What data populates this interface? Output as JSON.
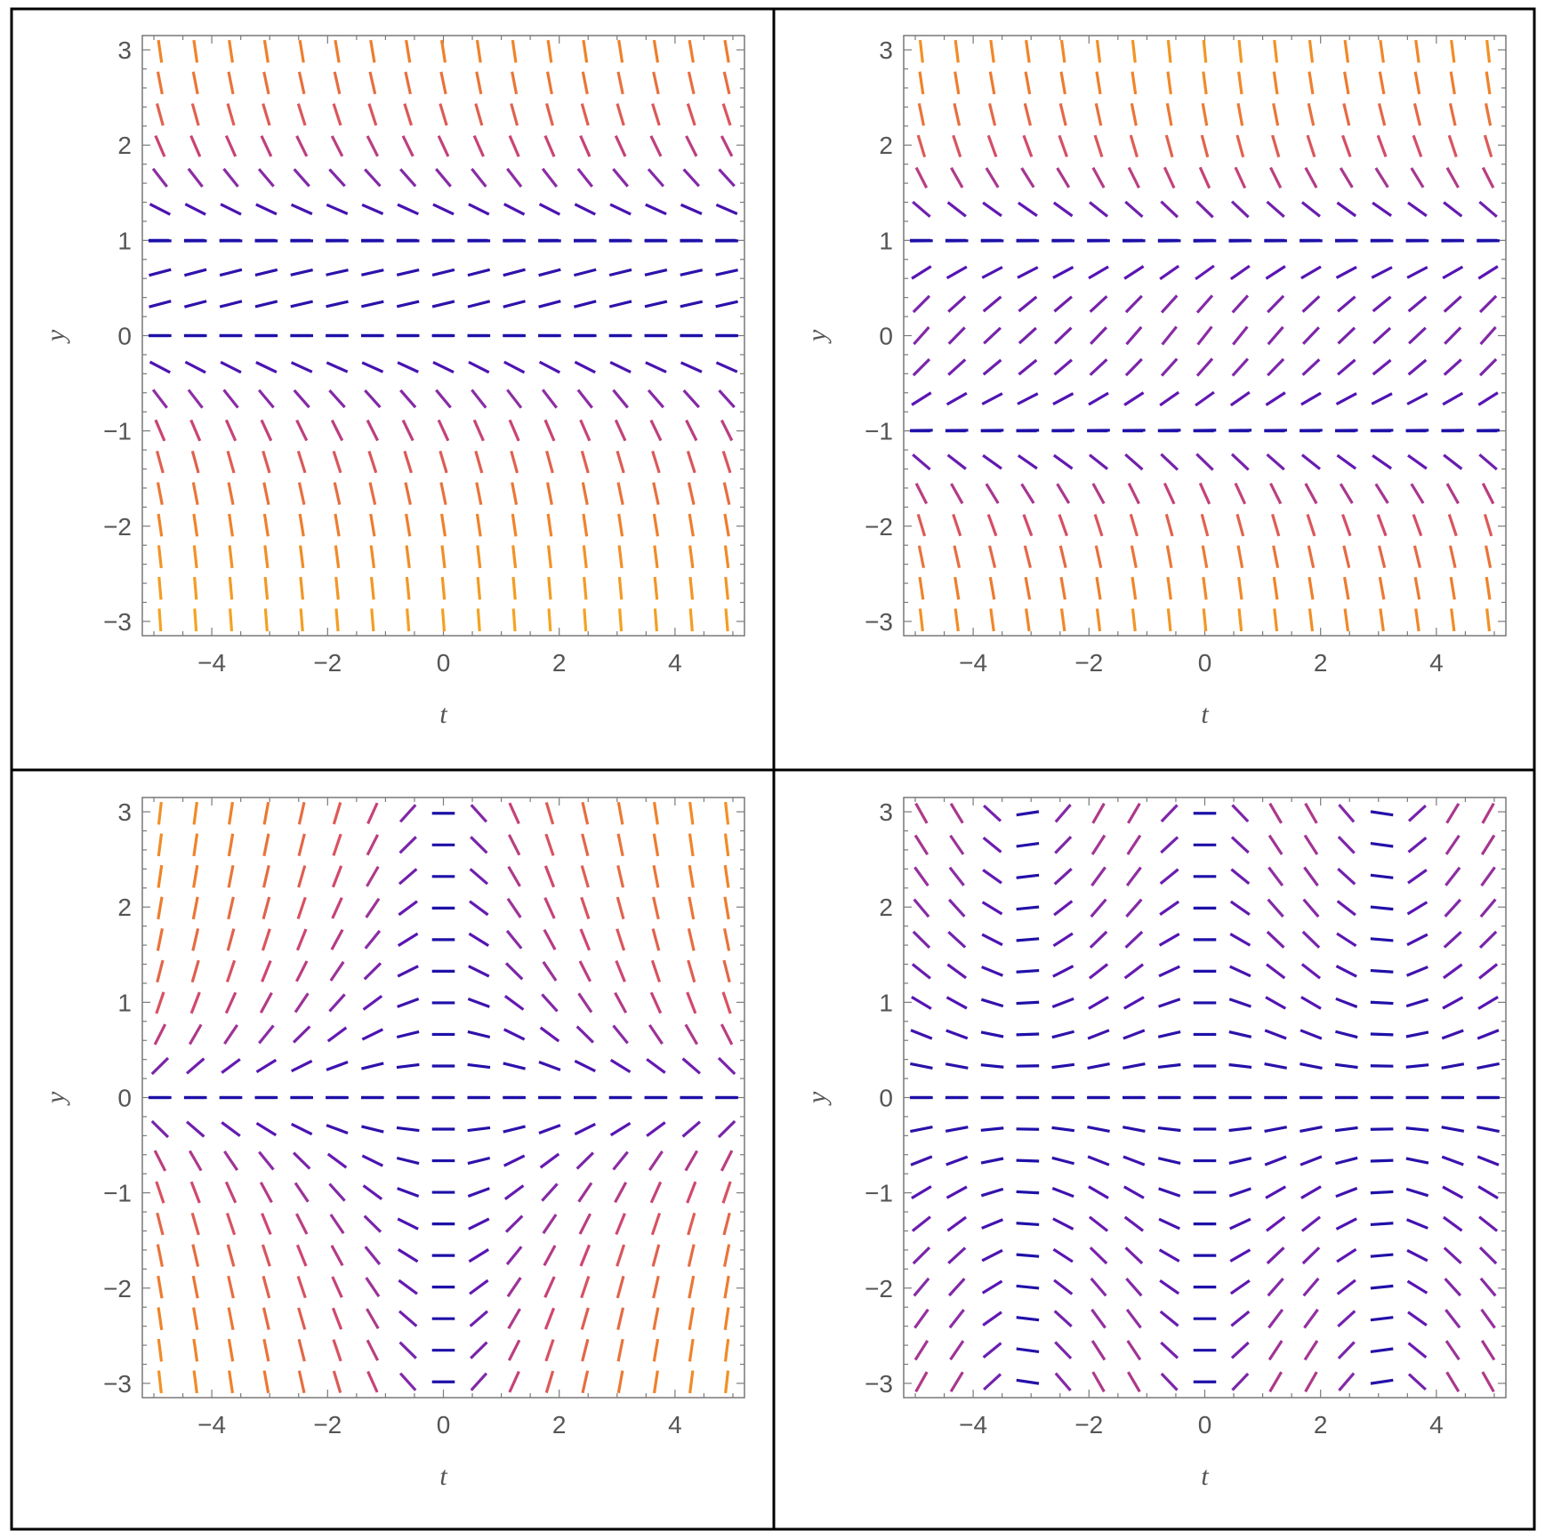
{
  "chart_data": [
    {
      "type": "slope_field",
      "equation_id": "p1",
      "xlabel": "t",
      "ylabel": "y",
      "xlim": [
        -5.2,
        5.2
      ],
      "ylim": [
        -3.15,
        3.15
      ],
      "xticks": [
        {
          "v": -4,
          "label": "−4"
        },
        {
          "v": -2,
          "label": "−2"
        },
        {
          "v": 0,
          "label": "0"
        },
        {
          "v": 2,
          "label": "2"
        },
        {
          "v": 4,
          "label": "4"
        }
      ],
      "yticks": [
        {
          "v": -3,
          "label": "−3"
        },
        {
          "v": -2,
          "label": "−2"
        },
        {
          "v": -1,
          "label": "−1"
        },
        {
          "v": 0,
          "label": "0"
        },
        {
          "v": 1,
          "label": "1"
        },
        {
          "v": 2,
          "label": "2"
        },
        {
          "v": 3,
          "label": "3"
        }
      ],
      "equilibria": [
        0,
        1
      ]
    },
    {
      "type": "slope_field",
      "equation_id": "p2",
      "xlabel": "t",
      "ylabel": "y",
      "xlim": [
        -5.2,
        5.2
      ],
      "ylim": [
        -3.15,
        3.15
      ],
      "xticks": [
        {
          "v": -4,
          "label": "−4"
        },
        {
          "v": -2,
          "label": "−2"
        },
        {
          "v": 0,
          "label": "0"
        },
        {
          "v": 2,
          "label": "2"
        },
        {
          "v": 4,
          "label": "4"
        }
      ],
      "yticks": [
        {
          "v": -3,
          "label": "−3"
        },
        {
          "v": -2,
          "label": "−2"
        },
        {
          "v": -1,
          "label": "−1"
        },
        {
          "v": 0,
          "label": "0"
        },
        {
          "v": 1,
          "label": "1"
        },
        {
          "v": 2,
          "label": "2"
        },
        {
          "v": 3,
          "label": "3"
        }
      ],
      "equilibria": [
        -1,
        1
      ]
    },
    {
      "type": "slope_field",
      "equation_id": "p3",
      "xlabel": "t",
      "ylabel": "y",
      "xlim": [
        -5.2,
        5.2
      ],
      "ylim": [
        -3.15,
        3.15
      ],
      "xticks": [
        {
          "v": -4,
          "label": "−4"
        },
        {
          "v": -2,
          "label": "−2"
        },
        {
          "v": 0,
          "label": "0"
        },
        {
          "v": 2,
          "label": "2"
        },
        {
          "v": 4,
          "label": "4"
        }
      ],
      "yticks": [
        {
          "v": -3,
          "label": "−3"
        },
        {
          "v": -2,
          "label": "−2"
        },
        {
          "v": -1,
          "label": "−1"
        },
        {
          "v": 0,
          "label": "0"
        },
        {
          "v": 1,
          "label": "1"
        },
        {
          "v": 2,
          "label": "2"
        },
        {
          "v": 3,
          "label": "3"
        }
      ],
      "equilibria": [
        0
      ]
    },
    {
      "type": "slope_field",
      "equation_id": "p4",
      "xlabel": "t",
      "ylabel": "y",
      "xlim": [
        -5.2,
        5.2
      ],
      "ylim": [
        -3.15,
        3.15
      ],
      "xticks": [
        {
          "v": -4,
          "label": "−4"
        },
        {
          "v": -2,
          "label": "−2"
        },
        {
          "v": 0,
          "label": "0"
        },
        {
          "v": 2,
          "label": "2"
        },
        {
          "v": 4,
          "label": "4"
        }
      ],
      "yticks": [
        {
          "v": -3,
          "label": "−3"
        },
        {
          "v": -2,
          "label": "−2"
        },
        {
          "v": -1,
          "label": "−1"
        },
        {
          "v": 0,
          "label": "0"
        },
        {
          "v": 1,
          "label": "1"
        },
        {
          "v": 2,
          "label": "2"
        },
        {
          "v": 3,
          "label": "3"
        }
      ],
      "equilibria": [
        0
      ]
    }
  ],
  "colors": {
    "low_slope": "#1e10a8",
    "mid_slope": "#8a2fa6",
    "high_slope": "#e06a3a",
    "max_slope": "#f7c21c"
  }
}
